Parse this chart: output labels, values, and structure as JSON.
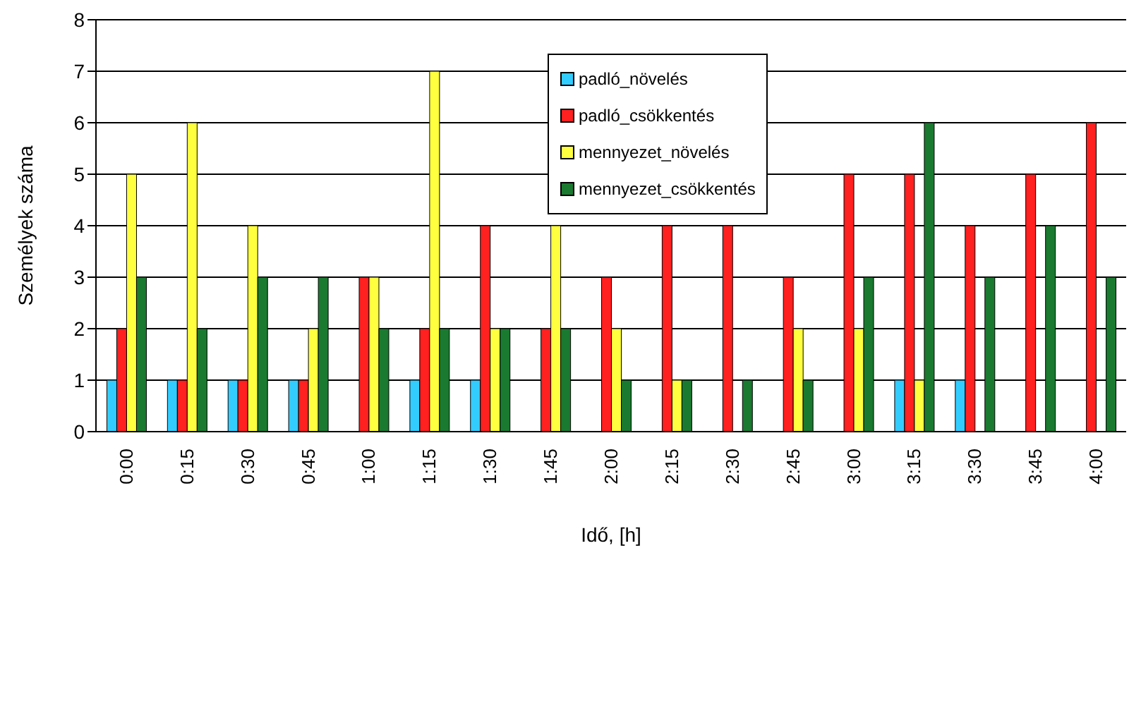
{
  "chart_data": {
    "type": "bar",
    "xlabel": "Idő, [h]",
    "ylabel": "Személyek száma",
    "categories": [
      "0:00",
      "0:15",
      "0:30",
      "0:45",
      "1:00",
      "1:15",
      "1:30",
      "1:45",
      "2:00",
      "2:15",
      "2:30",
      "2:45",
      "3:00",
      "3:15",
      "3:30",
      "3:45",
      "4:00"
    ],
    "series": [
      {
        "name": "padló_növelés",
        "color": "#33ccff",
        "values": [
          1,
          1,
          1,
          1,
          0,
          1,
          1,
          0,
          0,
          0,
          0,
          0,
          0,
          1,
          1,
          0,
          0
        ]
      },
      {
        "name": "padló_csökkentés",
        "color": "#ff2020",
        "values": [
          2,
          1,
          1,
          1,
          3,
          2,
          4,
          2,
          3,
          4,
          4,
          3,
          5,
          5,
          4,
          5,
          6
        ]
      },
      {
        "name": "mennyezet_növelés",
        "color": "#ffff40",
        "values": [
          5,
          6,
          4,
          2,
          3,
          7,
          2,
          4,
          2,
          1,
          0,
          2,
          2,
          1,
          0,
          0,
          0
        ]
      },
      {
        "name": "mennyezet_csökkentés",
        "color": "#1a7a30",
        "values": [
          3,
          2,
          3,
          3,
          2,
          2,
          2,
          2,
          1,
          1,
          1,
          1,
          3,
          6,
          3,
          4,
          3
        ]
      }
    ],
    "ylim": [
      0,
      8
    ],
    "yticks": [
      0,
      1,
      2,
      3,
      4,
      5,
      6,
      7,
      8
    ],
    "grid": "y",
    "legend": "top right"
  }
}
